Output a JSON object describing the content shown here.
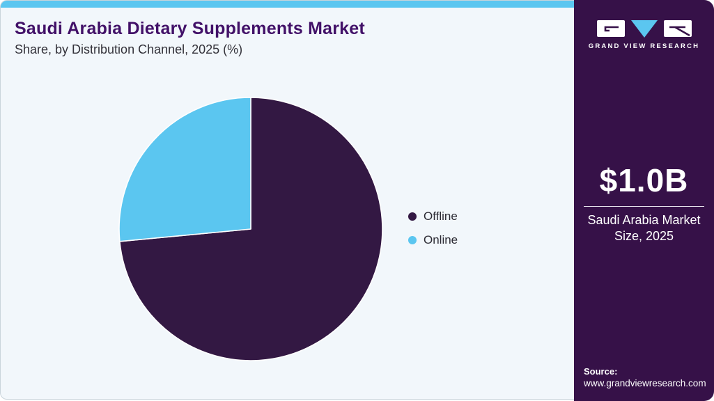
{
  "header": {
    "title": "Saudi Arabia Dietary Supplements Market",
    "subtitle": "Share, by Distribution Channel, 2025 (%)"
  },
  "chart_data": {
    "type": "pie",
    "title": "Saudi Arabia Dietary Supplements Market Share, by Distribution Channel, 2025 (%)",
    "categories": [
      "Offline",
      "Online"
    ],
    "values": [
      73.5,
      26.5
    ],
    "unit": "%",
    "colors": [
      "#331843",
      "#5bc6f0"
    ],
    "start_angle": "12 o'clock",
    "direction": "clockwise",
    "legend_position": "right",
    "slice_separator_color": "#ffffff"
  },
  "sidebar": {
    "brand": "GRAND VIEW RESEARCH",
    "market_size": "$1.0B",
    "market_label": "Saudi Arabia Market Size, 2025",
    "source_label": "Source:",
    "source_url": "www.grandviewresearch.com",
    "bg_color": "#361148"
  },
  "theme": {
    "panel_bg": "#f2f7fb",
    "topbar_color": "#5bc6f0",
    "title_color": "#421168",
    "text_color": "#33323a",
    "logo_blue": "#5bc6f0",
    "logo_purple": "#361148"
  }
}
